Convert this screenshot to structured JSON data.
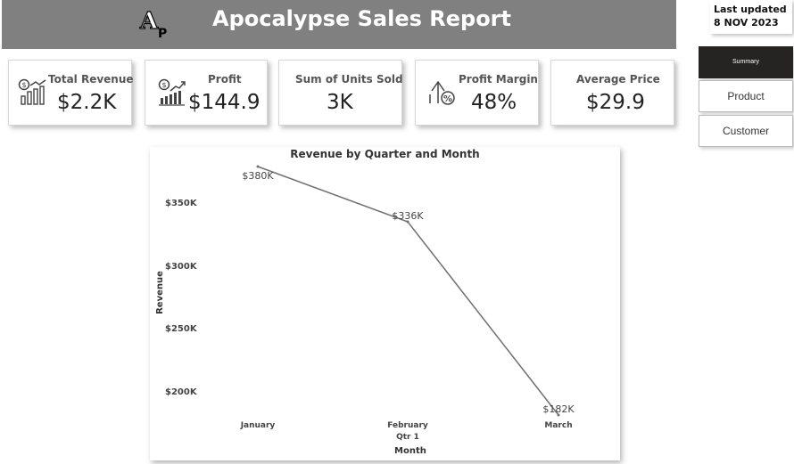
{
  "header": {
    "title": "Apocalypse Sales Report",
    "logo_text": "AP",
    "background": "#808080"
  },
  "last_updated": "Last updated 8 NOV 2023",
  "nav": {
    "summary": "Summary",
    "product": "Product",
    "customer": "Customer"
  },
  "kpis": {
    "total_revenue": {
      "label": "Total Revenue",
      "value": "$2.2K",
      "icon": "revenue-chart-icon"
    },
    "profit": {
      "label": "Profit",
      "value": "$144.9",
      "icon": "profit-growth-icon"
    },
    "units": {
      "label": "Sum of Units Sold",
      "value": "3K"
    },
    "margin": {
      "label": "Profit Margin",
      "value": "48%",
      "icon": "percent-up-icon"
    },
    "avg_price": {
      "label": "Average Price",
      "value": "$29.9"
    }
  },
  "chart_data": {
    "type": "line",
    "title": "Revenue by Quarter and Month",
    "xlabel": "Month",
    "ylabel": "Revenue",
    "categories": [
      "January",
      "February",
      "March"
    ],
    "x_group_label": "Qtr 1",
    "values": [
      380000,
      336000,
      182000
    ],
    "data_labels": [
      "$380K",
      "$336K",
      "$182K"
    ],
    "yticks": [
      {
        "value": 350000,
        "label": "$350K"
      },
      {
        "value": 300000,
        "label": "$300K"
      },
      {
        "value": 250000,
        "label": "$250K"
      },
      {
        "value": 200000,
        "label": "$200K"
      }
    ],
    "ylim": [
      182000,
      380000
    ],
    "line_color": "#707070",
    "grid": false
  }
}
